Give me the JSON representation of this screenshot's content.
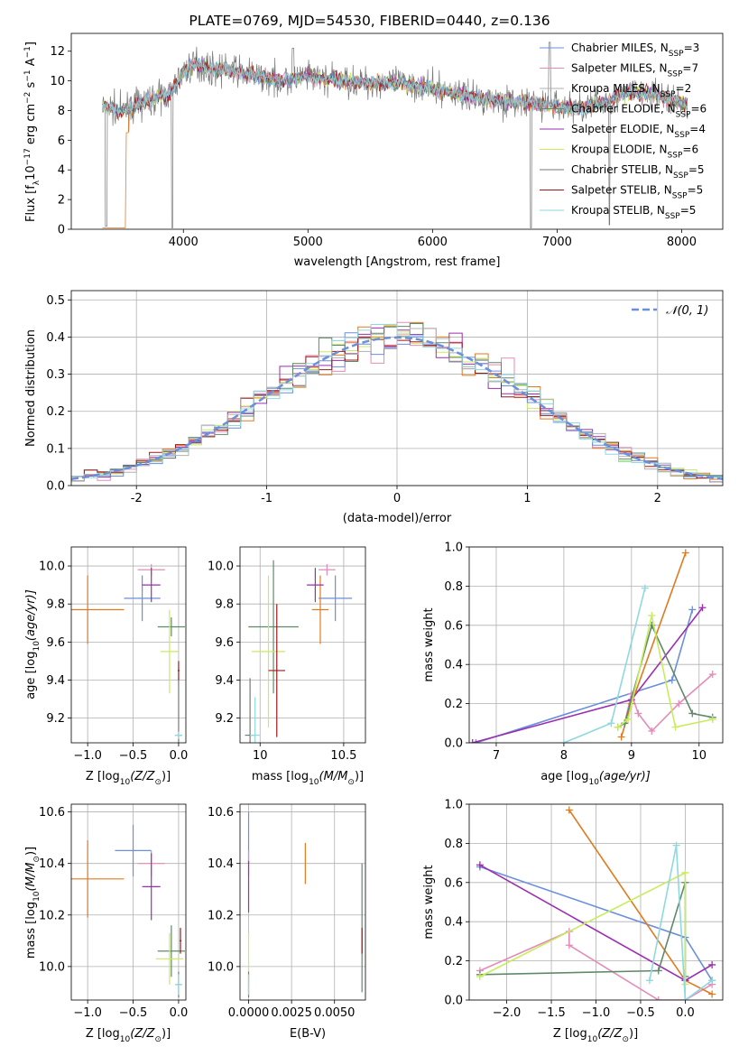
{
  "title": "PLATE=0769, MJD=54530, FIBERID=0440, z=0.136",
  "colors": [
    "#6a8fdc",
    "#e58bb7",
    "#b0b0b0",
    "#5f8a6a",
    "#9a2fb0",
    "#c8ec5c",
    "#777777",
    "#a01818",
    "#8fd8df",
    "#e07a1f"
  ],
  "legend_spectrum": [
    {
      "label": "Chabrier MILES, N",
      "sub": "SSP",
      "suffix": "=3",
      "color": "#6a8fdc"
    },
    {
      "label": "Salpeter MILES, N",
      "sub": "SSP",
      "suffix": "=7",
      "color": "#e58bb7"
    },
    {
      "label": "Kroupa MILES, N",
      "sub": "SSP",
      "suffix": "=2",
      "color": "#b0b0b0"
    },
    {
      "label": "Chabrier ELODIE, N",
      "sub": "SSP",
      "suffix": "=6",
      "color": "#5f8a6a"
    },
    {
      "label": "Salpeter ELODIE, N",
      "sub": "SSP",
      "suffix": "=4",
      "color": "#9a2fb0"
    },
    {
      "label": "Kroupa ELODIE, N",
      "sub": "SSP",
      "suffix": "=6",
      "color": "#c8ec5c"
    },
    {
      "label": "Chabrier STELIB, N",
      "sub": "SSP",
      "suffix": "=5",
      "color": "#777777"
    },
    {
      "label": "Salpeter STELIB, N",
      "sub": "SSP",
      "suffix": "=5",
      "color": "#a01818"
    },
    {
      "label": "Kroupa STELIB, N",
      "sub": "SSP",
      "suffix": "=5",
      "color": "#8fd8df"
    }
  ],
  "chart_data": [
    {
      "type": "line",
      "xlabel": "wavelength [Angstrom, rest frame]",
      "ylabel_main": "Flux [f",
      "ylabel_sub": "λ",
      "ylabel_mid": "10",
      "ylabel_sup1": "−17",
      "ylabel_rest1": " erg cm",
      "ylabel_sup2": "−2",
      "ylabel_rest2": " s",
      "ylabel_sup3": "−1",
      "ylabel_rest3": " A",
      "ylabel_sup4": "−1",
      "ylabel_end": "]",
      "xlim": [
        3100,
        8330
      ],
      "ylim": [
        0,
        13.2
      ],
      "xticks": [
        4000,
        5000,
        6000,
        7000,
        8000
      ],
      "yticks": [
        0,
        2,
        4,
        6,
        8,
        10,
        12
      ],
      "spectrum_anchors": [
        [
          3350,
          8.4
        ],
        [
          3500,
          7.9
        ],
        [
          3700,
          8.6
        ],
        [
          3900,
          9.2
        ],
        [
          4000,
          10.6
        ],
        [
          4100,
          11.2
        ],
        [
          4200,
          10.8
        ],
        [
          4400,
          10.7
        ],
        [
          4600,
          10.3
        ],
        [
          4800,
          10.0
        ],
        [
          5000,
          10.3
        ],
        [
          5200,
          10.1
        ],
        [
          5400,
          9.9
        ],
        [
          5600,
          9.9
        ],
        [
          5800,
          9.8
        ],
        [
          6000,
          9.5
        ],
        [
          6200,
          9.1
        ],
        [
          6400,
          8.8
        ],
        [
          6600,
          8.6
        ],
        [
          6800,
          8.5
        ],
        [
          7000,
          8.3
        ],
        [
          7200,
          8.2
        ],
        [
          7400,
          8.6
        ],
        [
          7600,
          9.3
        ],
        [
          7800,
          9.0
        ],
        [
          8050,
          8.4
        ]
      ]
    },
    {
      "type": "line",
      "xlabel": "(data-model)/error",
      "ylabel": "Normed distribution",
      "xlim": [
        -2.5,
        2.5
      ],
      "ylim": [
        0,
        0.525
      ],
      "xticks": [
        -2,
        -1,
        0,
        1,
        2
      ],
      "ytick_labels": [
        "0.0",
        "0.1",
        "0.2",
        "0.3",
        "0.4",
        "0.5"
      ],
      "yticks": [
        0,
        0.1,
        0.2,
        0.3,
        0.4,
        0.5
      ],
      "legend": "𝒩(0, 1)",
      "gauss_sigma": 1
    },
    {
      "type": "scatter",
      "xlabel": "Z [log",
      "xlabel_sub": "10",
      "xlabel_rest": "(Z/Z",
      "xlabel_sub2": "⊙",
      "xlabel_end": ")]",
      "ylabel": "age  [log",
      "ylabel_sub": "10",
      "ylabel_rest": "(age/yr)]",
      "xlim": [
        -1.18,
        0.08
      ],
      "ylim": [
        9.07,
        10.1
      ],
      "xticks": [
        -1.0,
        -0.5,
        0.0
      ],
      "xtick_labels": [
        "−1.0",
        "−0.5",
        "0.0"
      ],
      "yticks": [
        9.2,
        9.4,
        9.6,
        9.8,
        10.0
      ],
      "ytick_labels": [
        "9.2",
        "9.4",
        "9.6",
        "9.8",
        "10.0"
      ],
      "points": [
        {
          "x": -0.4,
          "xerr": 0.2,
          "y": 9.83,
          "yerr": 0.12,
          "c": 0
        },
        {
          "x": -0.3,
          "xerr": 0.15,
          "y": 9.98,
          "yerr": 0.03,
          "c": 1
        },
        {
          "x": -1.0,
          "xerr": 0.4,
          "y": 9.77,
          "yerr": 0.18,
          "c": 9
        },
        {
          "x": -0.3,
          "xerr": 0.1,
          "y": 9.9,
          "yerr": 0.09,
          "c": 4
        },
        {
          "x": -0.08,
          "xerr": 0.15,
          "y": 9.68,
          "yerr": 0.05,
          "c": 3
        },
        {
          "x": -0.1,
          "xerr": 0.1,
          "y": 9.55,
          "yerr": 0.22,
          "c": 5
        },
        {
          "x": 0.0,
          "xerr": 0.04,
          "y": 9.11,
          "yerr": 0.3,
          "c": 6
        },
        {
          "x": 0.0,
          "xerr": 0.01,
          "y": 9.45,
          "yerr": 0.05,
          "c": 7
        },
        {
          "x": 0.0,
          "xerr": 0.04,
          "y": 9.11,
          "yerr": 0.02,
          "c": 8
        }
      ]
    },
    {
      "type": "scatter",
      "xlabel": "mass [log",
      "xlabel_sub": "10",
      "xlabel_rest": "(M/M",
      "xlabel_sub2": "⊙",
      "xlabel_end": ")]",
      "xlim": [
        9.88,
        10.63
      ],
      "ylim": [
        9.07,
        10.1
      ],
      "xticks": [
        10.0,
        10.5
      ],
      "xtick_labels": [
        "10",
        "10.5"
      ],
      "yticks": [
        9.2,
        9.4,
        9.6,
        9.8,
        10.0
      ],
      "ytick_labels": [
        "9.2",
        "9.4",
        "9.6",
        "9.8",
        "10.0"
      ],
      "points": [
        {
          "x": 10.45,
          "xerr": 0.1,
          "y": 9.83,
          "yerr": 0.12,
          "c": 0
        },
        {
          "x": 10.4,
          "xerr": 0.05,
          "y": 9.98,
          "yerr": 0.03,
          "c": 1
        },
        {
          "x": 10.36,
          "xerr": 0.05,
          "y": 9.77,
          "yerr": 0.18,
          "c": 9
        },
        {
          "x": 10.33,
          "xerr": 0.05,
          "y": 9.9,
          "yerr": 0.09,
          "c": 4
        },
        {
          "x": 10.08,
          "xerr": 0.15,
          "y": 9.68,
          "yerr": 0.35,
          "c": 3
        },
        {
          "x": 10.05,
          "xerr": 0.1,
          "y": 9.55,
          "yerr": 0.4,
          "c": 5
        },
        {
          "x": 9.94,
          "xerr": 0.03,
          "y": 9.11,
          "yerr": 0.3,
          "c": 6
        },
        {
          "x": 10.1,
          "xerr": 0.05,
          "y": 9.45,
          "yerr": 0.35,
          "c": 7
        },
        {
          "x": 9.97,
          "xerr": 0.03,
          "y": 9.11,
          "yerr": 0.2,
          "c": 8
        }
      ]
    },
    {
      "type": "line",
      "xlabel": "age  [log",
      "xlabel_sub": "10",
      "xlabel_rest": "(age/yr)]",
      "ylabel": "mass weight",
      "xlim": [
        6.6,
        10.35
      ],
      "ylim": [
        0,
        1
      ],
      "xticks": [
        7,
        8,
        9,
        10
      ],
      "xtick_labels": [
        "7",
        "8",
        "9",
        "10"
      ],
      "yticks": [
        0,
        0.2,
        0.4,
        0.6,
        0.8,
        1.0
      ],
      "ytick_labels": [
        "0.0",
        "0.2",
        "0.4",
        "0.6",
        "0.8",
        "1.0"
      ],
      "series": [
        {
          "c": 0,
          "pts": [
            [
              6.7,
              0.0
            ],
            [
              9.6,
              0.32
            ],
            [
              9.9,
              0.68
            ]
          ]
        },
        {
          "c": 1,
          "pts": [
            [
              8.9,
              0.1
            ],
            [
              9.0,
              0.25
            ],
            [
              9.1,
              0.15
            ],
            [
              9.3,
              0.06
            ],
            [
              9.7,
              0.2
            ],
            [
              10.2,
              0.35
            ]
          ]
        },
        {
          "c": 9,
          "pts": [
            [
              8.85,
              0.03
            ],
            [
              9.0,
              0.2
            ],
            [
              9.8,
              0.97
            ]
          ]
        },
        {
          "c": 4,
          "pts": [
            [
              6.65,
              0.0
            ],
            [
              9.0,
              0.22
            ],
            [
              10.05,
              0.69
            ]
          ]
        },
        {
          "c": 3,
          "pts": [
            [
              8.8,
              0.08
            ],
            [
              8.9,
              0.1
            ],
            [
              9.3,
              0.6
            ],
            [
              9.9,
              0.15
            ],
            [
              10.2,
              0.13
            ]
          ]
        },
        {
          "c": 5,
          "pts": [
            [
              8.8,
              0.08
            ],
            [
              8.95,
              0.12
            ],
            [
              9.3,
              0.65
            ],
            [
              9.65,
              0.08
            ],
            [
              10.2,
              0.12
            ]
          ]
        },
        {
          "c": 8,
          "pts": [
            [
              8.0,
              0.0
            ],
            [
              8.7,
              0.1
            ],
            [
              9.2,
              0.79
            ]
          ]
        }
      ]
    },
    {
      "type": "scatter",
      "xlabel": "Z [log",
      "xlabel_sub": "10",
      "xlabel_rest": "(Z/Z",
      "xlabel_sub2": "⊙",
      "xlabel_end": ")]",
      "ylabel": "mass [log",
      "ylabel_sub": "10",
      "ylabel_rest": "(M/M",
      "ylabel_sub2": "⊙",
      "ylabel_end": ")]",
      "xlim": [
        -1.18,
        0.08
      ],
      "ylim": [
        9.87,
        10.63
      ],
      "xticks": [
        -1.0,
        -0.5,
        0.0
      ],
      "xtick_labels": [
        "−1.0",
        "−0.5",
        "0.0"
      ],
      "yticks": [
        10.0,
        10.2,
        10.4,
        10.6
      ],
      "ytick_labels": [
        "10.0",
        "10.2",
        "10.4",
        "10.6"
      ],
      "points": [
        {
          "x": -0.5,
          "xerr": 0.2,
          "y": 10.45,
          "yerr": 0.1,
          "c": 0
        },
        {
          "x": -0.3,
          "xerr": 0.15,
          "y": 10.4,
          "yerr": 0.05,
          "c": 1
        },
        {
          "x": -1.0,
          "xerr": 0.4,
          "y": 10.34,
          "yerr": 0.15,
          "c": 9
        },
        {
          "x": -0.3,
          "xerr": 0.1,
          "y": 10.31,
          "yerr": 0.13,
          "c": 4
        },
        {
          "x": -0.08,
          "xerr": 0.15,
          "y": 10.06,
          "yerr": 0.1,
          "c": 3
        },
        {
          "x": -0.1,
          "xerr": 0.15,
          "y": 10.03,
          "yerr": 0.1,
          "c": 5
        },
        {
          "x": 0.0,
          "xerr": 0.03,
          "y": 9.93,
          "yerr": 0.05,
          "c": 6
        },
        {
          "x": 0.02,
          "xerr": 0.01,
          "y": 10.1,
          "yerr": 0.05,
          "c": 7
        },
        {
          "x": 0.0,
          "xerr": 0.04,
          "y": 9.93,
          "yerr": 0.04,
          "c": 8
        }
      ]
    },
    {
      "type": "scatter",
      "xlabel": "E(B-V)",
      "xlim": [
        -0.0005,
        0.0068
      ],
      "ylim": [
        9.87,
        10.63
      ],
      "xticks": [
        0,
        0.0025,
        0.005
      ],
      "xtick_labels": [
        "0.0000",
        "0.0025",
        "0.0050"
      ],
      "yticks": [
        10.0,
        10.2,
        10.4,
        10.6
      ],
      "ytick_labels": [
        "10.0",
        "10.2",
        "10.4",
        "10.6"
      ],
      "points": [
        {
          "x": 0.0,
          "xerr": 0,
          "y": 10.5,
          "yerr": 0.1,
          "c": 0
        },
        {
          "x": 0.0,
          "xerr": 0,
          "y": 10.4,
          "yerr": 0.05,
          "c": 1
        },
        {
          "x": 0.0033,
          "xerr": 0,
          "y": 10.4,
          "yerr": 0.08,
          "c": 9
        },
        {
          "x": 0.0,
          "xerr": 0,
          "y": 10.31,
          "yerr": 0.1,
          "c": 4
        },
        {
          "x": 0.0066,
          "xerr": 0,
          "y": 10.15,
          "yerr": 0.25,
          "c": 3
        },
        {
          "x": 0.0,
          "xerr": 0,
          "y": 10.03,
          "yerr": 0.1,
          "c": 5
        },
        {
          "x": 0.0,
          "xerr": 0,
          "y": 9.93,
          "yerr": 0.05,
          "c": 6
        },
        {
          "x": 0.0066,
          "xerr": 0,
          "y": 10.1,
          "yerr": 0.05,
          "c": 7
        },
        {
          "x": 0.0,
          "xerr": 0,
          "y": 9.93,
          "yerr": 0.04,
          "c": 8
        }
      ]
    },
    {
      "type": "line",
      "xlabel": "Z [log",
      "xlabel_sub": "10",
      "xlabel_rest": "(Z/Z",
      "xlabel_sub2": "⊙",
      "xlabel_end": ")]",
      "ylabel": "mass weight",
      "xlim": [
        -2.42,
        0.42
      ],
      "ylim": [
        0,
        1
      ],
      "xticks": [
        -2.0,
        -1.5,
        -1.0,
        -0.5,
        0.0
      ],
      "xtick_labels": [
        "−2.0",
        "−1.5",
        "−1.0",
        "−0.5",
        "0.0"
      ],
      "yticks": [
        0,
        0.2,
        0.4,
        0.6,
        0.8,
        1.0
      ],
      "ytick_labels": [
        "0.0",
        "0.2",
        "0.4",
        "0.6",
        "0.8",
        "1.0"
      ],
      "series": [
        {
          "c": 0,
          "pts": [
            [
              -2.3,
              0.68
            ],
            [
              0.0,
              0.32
            ],
            [
              0.3,
              0.1
            ]
          ]
        },
        {
          "c": 1,
          "pts": [
            [
              -2.3,
              0.15
            ],
            [
              -1.3,
              0.35
            ],
            [
              -1.3,
              0.28
            ],
            [
              -0.3,
              0.0
            ],
            [
              0.0,
              0.0
            ],
            [
              0.3,
              0.08
            ]
          ]
        },
        {
          "c": 9,
          "pts": [
            [
              -1.3,
              0.97
            ],
            [
              0.0,
              0.1
            ],
            [
              0.3,
              0.03
            ]
          ]
        },
        {
          "c": 4,
          "pts": [
            [
              -2.3,
              0.69
            ],
            [
              0.0,
              0.1
            ],
            [
              0.3,
              0.18
            ]
          ]
        },
        {
          "c": 3,
          "pts": [
            [
              -2.3,
              0.13
            ],
            [
              -0.3,
              0.15
            ],
            [
              0.0,
              0.6
            ],
            [
              0.0,
              0.12
            ]
          ]
        },
        {
          "c": 5,
          "pts": [
            [
              -2.3,
              0.12
            ],
            [
              0.0,
              0.65
            ],
            [
              0.0,
              0.08
            ]
          ]
        },
        {
          "c": 8,
          "pts": [
            [
              -0.4,
              0.1
            ],
            [
              -0.1,
              0.79
            ],
            [
              0.0,
              0.0
            ],
            [
              0.3,
              0.1
            ]
          ]
        }
      ]
    }
  ]
}
